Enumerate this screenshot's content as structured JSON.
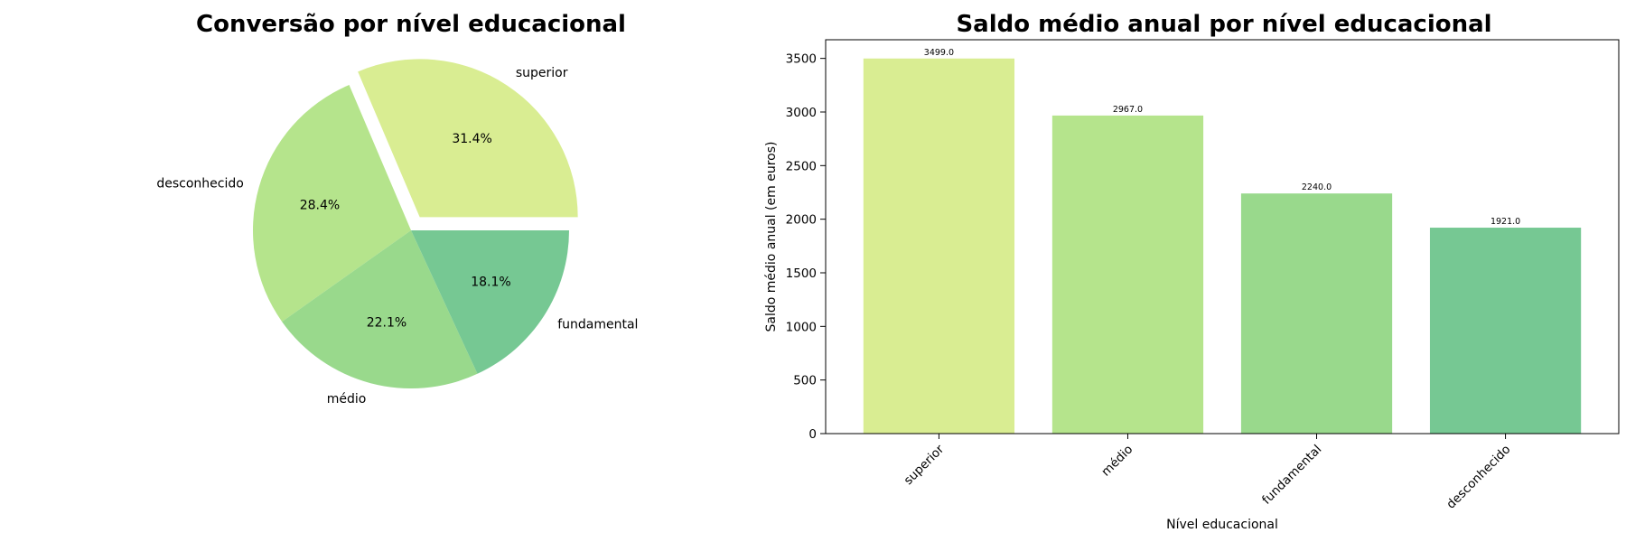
{
  "chart_data": [
    {
      "type": "pie",
      "title": "Conversão por nível educacional",
      "slices": [
        {
          "label": "superior",
          "value": 31.4,
          "pct_label": "31.4%",
          "color": "#d9ed92",
          "exploded": true
        },
        {
          "label": "desconhecido",
          "value": 28.4,
          "pct_label": "28.4%",
          "color": "#b5e48c",
          "exploded": false
        },
        {
          "label": "médio",
          "value": 22.1,
          "pct_label": "22.1%",
          "color": "#99d98c",
          "exploded": false
        },
        {
          "label": "fundamental",
          "value": 18.1,
          "pct_label": "18.1%",
          "color": "#76c893",
          "exploded": false
        }
      ]
    },
    {
      "type": "bar",
      "title": "Saldo médio anual por nível educacional",
      "xlabel": "Nível educacional",
      "ylabel": "Saldo médio anual (em euros)",
      "categories": [
        "superior",
        "médio",
        "fundamental",
        "desconhecido"
      ],
      "values": [
        3499.0,
        2967.0,
        2240.0,
        1921.0
      ],
      "value_labels": [
        "3499.0",
        "2967.0",
        "2240.0",
        "1921.0"
      ],
      "colors": [
        "#d9ed92",
        "#b5e48c",
        "#99d98c",
        "#76c893"
      ],
      "ylim": [
        0,
        3674
      ],
      "yticks": [
        0,
        500,
        1000,
        1500,
        2000,
        2500,
        3000,
        3500
      ],
      "grid": false
    }
  ]
}
